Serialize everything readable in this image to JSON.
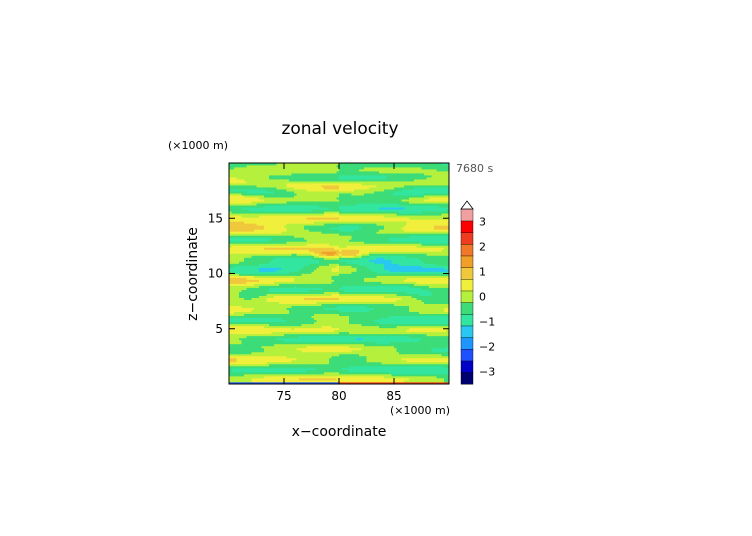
{
  "chart_data": {
    "type": "heatmap",
    "title": "zonal velocity",
    "xlabel": "x−coordinate",
    "ylabel": "z−coordinate",
    "x_units": "(×1000 m)",
    "y_units": "(×1000 m)",
    "time_label": "7680 s",
    "xlim": [
      70,
      90
    ],
    "ylim": [
      0,
      20
    ],
    "x_ticks": [
      75,
      80,
      85
    ],
    "x_tick_labels": [
      "75",
      "80",
      "85"
    ],
    "y_ticks": [
      5,
      10,
      15
    ],
    "y_tick_labels": [
      "5",
      "10",
      "15"
    ],
    "colorbar": {
      "min": -3.5,
      "max": 3.5,
      "step": 0.5,
      "extend_max": true,
      "tick_values": [
        -3,
        -2,
        -1,
        0,
        1,
        2,
        3
      ],
      "tick_labels": [
        "−3",
        "−2",
        "−1",
        "0",
        "1",
        "2",
        "3"
      ],
      "colors": [
        "#00006e",
        "#0000c8",
        "#1e50ff",
        "#1e96ff",
        "#28c8f0",
        "#32e6a0",
        "#3cdc78",
        "#b4f03c",
        "#f0f03c",
        "#f0c83c",
        "#f0a028",
        "#f07828",
        "#f03c1e",
        "#ff0000",
        "#f0a0a0"
      ]
    },
    "field_description": "u(x,z): horizontal bands mirror-symmetric about x=80; strongest jets at z≈12"
  }
}
